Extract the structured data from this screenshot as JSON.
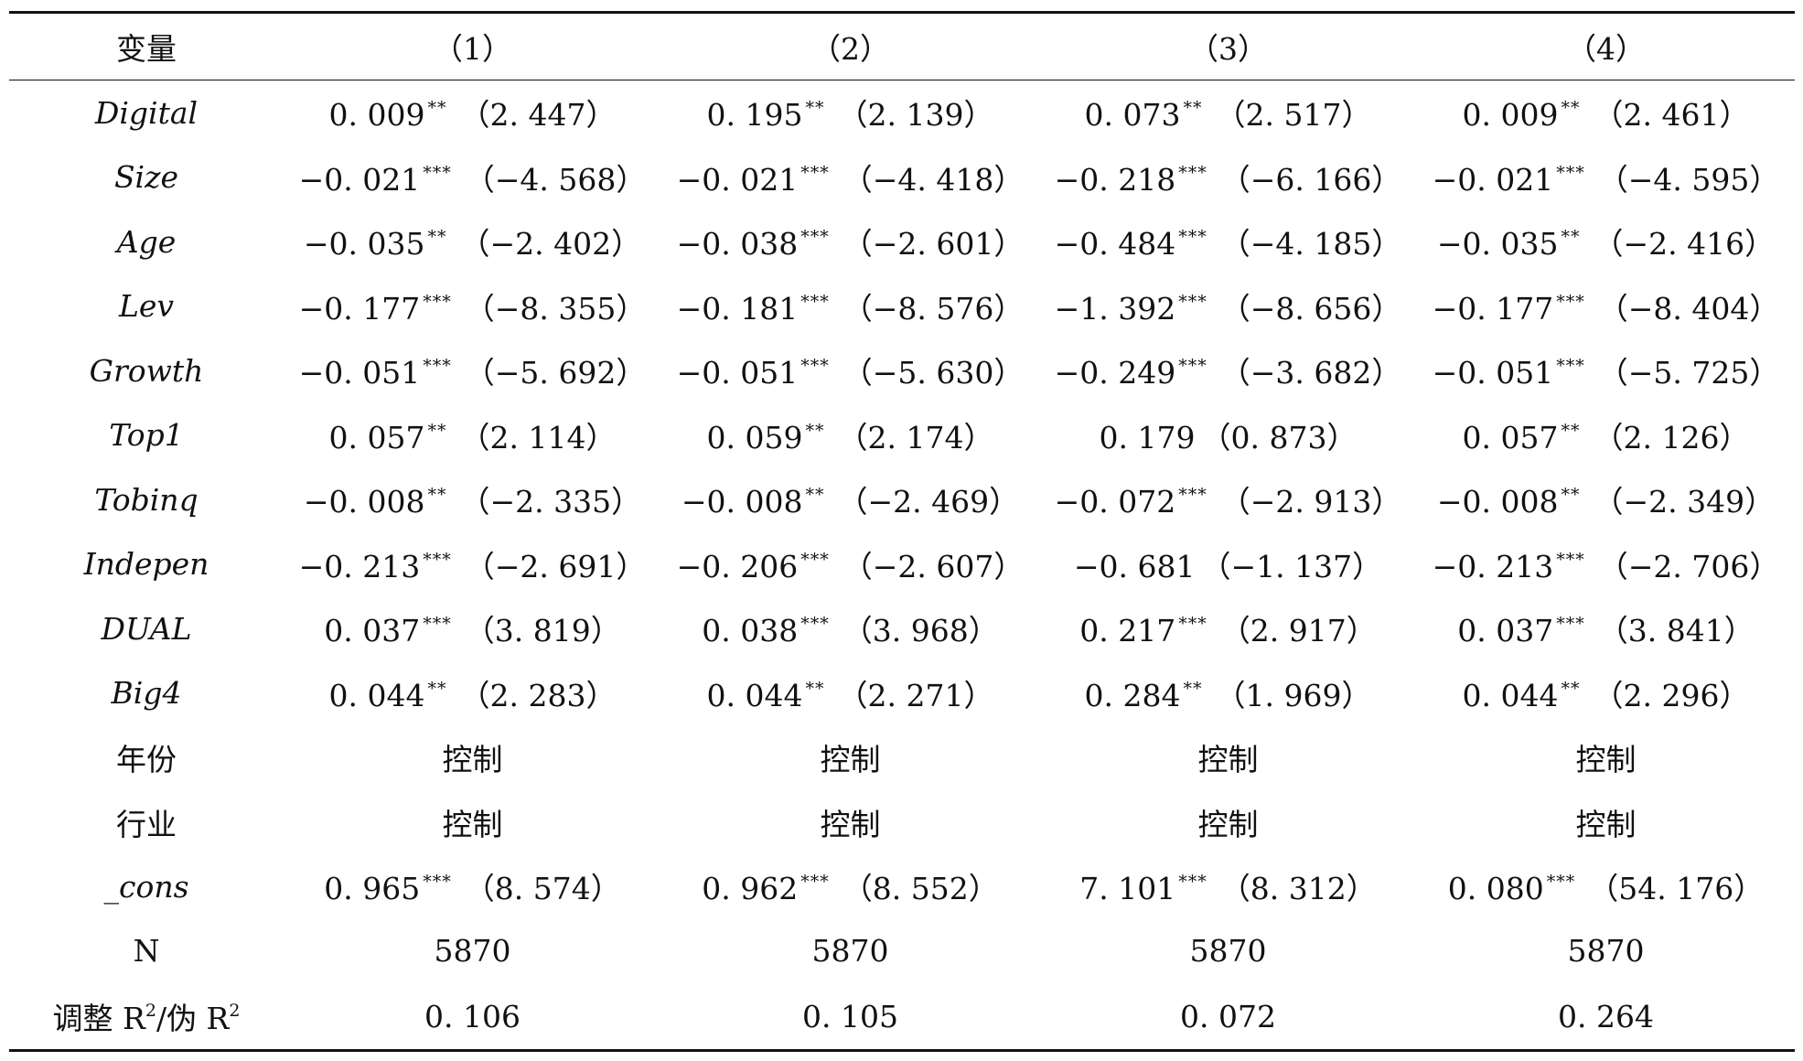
{
  "table": {
    "header": {
      "var_label": "变量",
      "columns": [
        "（1）",
        "（2）",
        "（3）",
        "（4）"
      ]
    },
    "rows": [
      {
        "label": "Digital",
        "italic": true,
        "cells": [
          {
            "coef": "0. 009",
            "stars": "**",
            "t": "（2. 447）"
          },
          {
            "coef": "0. 195",
            "stars": "**",
            "t": "（2. 139）"
          },
          {
            "coef": "0. 073",
            "stars": "**",
            "t": "（2. 517）"
          },
          {
            "coef": "0. 009",
            "stars": "**",
            "t": "（2. 461）"
          }
        ]
      },
      {
        "label": "Size",
        "italic": true,
        "cells": [
          {
            "coef": "−0. 021",
            "stars": "***",
            "t": "（−4. 568）"
          },
          {
            "coef": "−0. 021",
            "stars": "***",
            "t": "（−4. 418）"
          },
          {
            "coef": "−0. 218",
            "stars": "***",
            "t": "（−6. 166）"
          },
          {
            "coef": "−0. 021",
            "stars": "***",
            "t": "（−4. 595）"
          }
        ]
      },
      {
        "label": "Age",
        "italic": true,
        "cells": [
          {
            "coef": "−0. 035",
            "stars": "**",
            "t": "（−2. 402）"
          },
          {
            "coef": "−0. 038",
            "stars": "***",
            "t": "（−2. 601）"
          },
          {
            "coef": "−0. 484",
            "stars": "***",
            "t": "（−4. 185）"
          },
          {
            "coef": "−0. 035",
            "stars": "**",
            "t": "（−2. 416）"
          }
        ]
      },
      {
        "label": "Lev",
        "italic": true,
        "cells": [
          {
            "coef": "−0. 177",
            "stars": "***",
            "t": "（−8. 355）"
          },
          {
            "coef": "−0. 181",
            "stars": "***",
            "t": "（−8. 576）"
          },
          {
            "coef": "−1. 392",
            "stars": "***",
            "t": "（−8. 656）"
          },
          {
            "coef": "−0. 177",
            "stars": "***",
            "t": "（−8. 404）"
          }
        ]
      },
      {
        "label": "Growth",
        "italic": true,
        "cells": [
          {
            "coef": "−0. 051",
            "stars": "***",
            "t": "（−5. 692）"
          },
          {
            "coef": "−0. 051",
            "stars": "***",
            "t": "（−5. 630）"
          },
          {
            "coef": "−0. 249",
            "stars": "***",
            "t": "（−3. 682）"
          },
          {
            "coef": "−0. 051",
            "stars": "***",
            "t": "（−5. 725）"
          }
        ]
      },
      {
        "label": "Top1",
        "italic": true,
        "cells": [
          {
            "coef": "0. 057",
            "stars": "**",
            "t": "（2. 114）"
          },
          {
            "coef": "0. 059",
            "stars": "**",
            "t": "（2. 174）"
          },
          {
            "coef": "0. 179",
            "stars": "",
            "t": "（0. 873）"
          },
          {
            "coef": "0. 057",
            "stars": "**",
            "t": "（2. 126）"
          }
        ]
      },
      {
        "label": "Tobinq",
        "italic": true,
        "cells": [
          {
            "coef": "−0. 008",
            "stars": "**",
            "t": "（−2. 335）"
          },
          {
            "coef": "−0. 008",
            "stars": "**",
            "t": "（−2. 469）"
          },
          {
            "coef": "−0. 072",
            "stars": "***",
            "t": "（−2. 913）"
          },
          {
            "coef": "−0. 008",
            "stars": "**",
            "t": "（−2. 349）"
          }
        ]
      },
      {
        "label": "Indepen",
        "italic": true,
        "cells": [
          {
            "coef": "−0. 213",
            "stars": "***",
            "t": "（−2. 691）"
          },
          {
            "coef": "−0. 206",
            "stars": "***",
            "t": "（−2. 607）"
          },
          {
            "coef": "−0. 681",
            "stars": "",
            "t": "（−1. 137）"
          },
          {
            "coef": "−0. 213",
            "stars": "***",
            "t": "（−2. 706）"
          }
        ]
      },
      {
        "label": "DUAL",
        "italic": true,
        "cells": [
          {
            "coef": "0. 037",
            "stars": "***",
            "t": "（3. 819）"
          },
          {
            "coef": "0. 038",
            "stars": "***",
            "t": "（3. 968）"
          },
          {
            "coef": "0. 217",
            "stars": "***",
            "t": "（2. 917）"
          },
          {
            "coef": "0. 037",
            "stars": "***",
            "t": "（3. 841）"
          }
        ]
      },
      {
        "label": "Big4",
        "italic": true,
        "cells": [
          {
            "coef": "0. 044",
            "stars": "**",
            "t": "（2. 283）"
          },
          {
            "coef": "0. 044",
            "stars": "**",
            "t": "（2. 271）"
          },
          {
            "coef": "0. 284",
            "stars": "**",
            "t": "（1. 969）"
          },
          {
            "coef": "0. 044",
            "stars": "**",
            "t": "（2. 296）"
          }
        ]
      },
      {
        "label": "年份",
        "italic": false,
        "cells": [
          {
            "coef": "控制",
            "stars": "",
            "t": ""
          },
          {
            "coef": "控制",
            "stars": "",
            "t": ""
          },
          {
            "coef": "控制",
            "stars": "",
            "t": ""
          },
          {
            "coef": "控制",
            "stars": "",
            "t": ""
          }
        ]
      },
      {
        "label": "行业",
        "italic": false,
        "cells": [
          {
            "coef": "控制",
            "stars": "",
            "t": ""
          },
          {
            "coef": "控制",
            "stars": "",
            "t": ""
          },
          {
            "coef": "控制",
            "stars": "",
            "t": ""
          },
          {
            "coef": "控制",
            "stars": "",
            "t": ""
          }
        ]
      },
      {
        "label": "_cons",
        "italic": true,
        "cells": [
          {
            "coef": "0. 965",
            "stars": "***",
            "t": "（8. 574）"
          },
          {
            "coef": "0. 962",
            "stars": "***",
            "t": "（8. 552）"
          },
          {
            "coef": "7. 101",
            "stars": "***",
            "t": "（8. 312）"
          },
          {
            "coef": "0. 080",
            "stars": "***",
            "t": "（54. 176）"
          }
        ]
      },
      {
        "label": "N",
        "italic": false,
        "cells": [
          {
            "coef": "5870",
            "stars": "",
            "t": ""
          },
          {
            "coef": "5870",
            "stars": "",
            "t": ""
          },
          {
            "coef": "5870",
            "stars": "",
            "t": ""
          },
          {
            "coef": "5870",
            "stars": "",
            "t": ""
          }
        ]
      }
    ],
    "last_row": {
      "label_part1": "调整 R",
      "label_sup1": "2",
      "label_part2": "/伪 R",
      "label_sup2": "2",
      "cells": [
        "0. 106",
        "0. 105",
        "0. 072",
        "0. 264"
      ]
    }
  }
}
